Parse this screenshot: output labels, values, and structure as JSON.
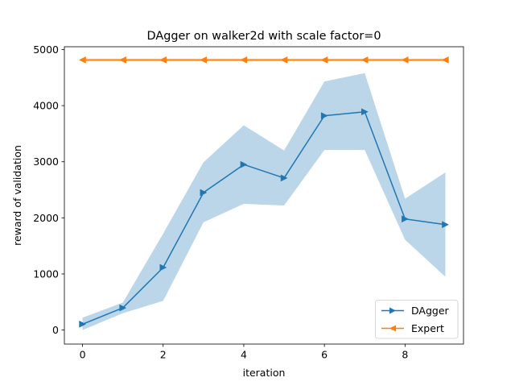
{
  "chart_data": {
    "type": "line",
    "title": "DAgger on walker2d with scale factor=0",
    "xlabel": "iteration",
    "ylabel": "reward of validation",
    "xlim": [
      -0.45,
      9.45
    ],
    "ylim": [
      -250,
      5050
    ],
    "xticks": [
      0,
      2,
      4,
      6,
      8
    ],
    "yticks": [
      0,
      1000,
      2000,
      3000,
      4000,
      5000
    ],
    "xtick_labels": [
      "0",
      "2",
      "4",
      "6",
      "8"
    ],
    "ytick_labels": [
      "0",
      "1000",
      "2000",
      "3000",
      "4000",
      "5000"
    ],
    "grid": false,
    "legend_position": "lower-right",
    "x": [
      0,
      1,
      2,
      3,
      4,
      5,
      6,
      7,
      8,
      9
    ],
    "series": [
      {
        "name": "DAgger",
        "color": "#1f77b4",
        "marker": "triangle-right",
        "values": [
          105,
          395,
          1115,
          2450,
          2950,
          2710,
          3820,
          3890,
          1980,
          1880
        ],
        "band_lower": [
          0,
          300,
          520,
          1920,
          2250,
          2220,
          3210,
          3210,
          1610,
          950
        ],
        "band_upper": [
          220,
          490,
          1720,
          2990,
          3650,
          3200,
          4430,
          4580,
          2340,
          2810
        ],
        "band_color": "#1f77b4",
        "band_opacity": 0.3
      },
      {
        "name": "Expert",
        "color": "#ff7f0e",
        "marker": "triangle-left",
        "values": [
          4815,
          4815,
          4815,
          4815,
          4815,
          4815,
          4815,
          4815,
          4815,
          4815
        ],
        "band_lower": [
          4790,
          4790,
          4790,
          4790,
          4790,
          4790,
          4790,
          4790,
          4790,
          4790
        ],
        "band_upper": [
          4840,
          4840,
          4840,
          4840,
          4840,
          4840,
          4840,
          4840,
          4840,
          4840
        ],
        "band_color": "#ff7f0e",
        "band_opacity": 0.3
      }
    ]
  }
}
